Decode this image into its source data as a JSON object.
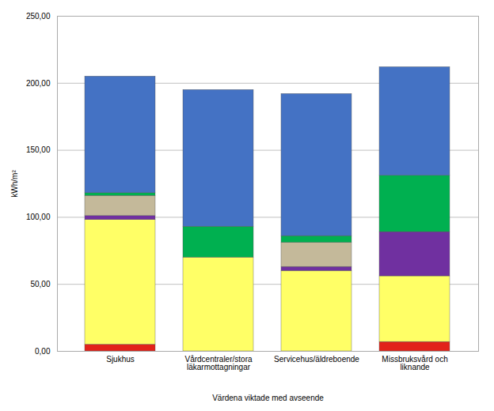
{
  "chart_data": {
    "type": "bar",
    "stacked": true,
    "grid": true,
    "categories": [
      "Sjukhus",
      "Vårdcentraler/stora\nläkarmottagningar",
      "Servicehus/äldreboende",
      "Missbruksvård och\nliknande"
    ],
    "series": [
      {
        "color": "#e2231a",
        "values": [
          5,
          0,
          0,
          7
        ]
      },
      {
        "color": "#ffff66",
        "values": [
          93,
          70,
          60,
          49
        ]
      },
      {
        "color": "#7030a0",
        "values": [
          3,
          0,
          3,
          33
        ]
      },
      {
        "color": "#c4b99a",
        "values": [
          15,
          0,
          18,
          0
        ]
      },
      {
        "color": "#00b050",
        "values": [
          2,
          23,
          5,
          42
        ]
      },
      {
        "color": "#4472c4",
        "values": [
          87,
          102,
          106,
          81
        ]
      }
    ],
    "xlabel": "Värdena viktade med avseende",
    "ylabel": "kWh/m²",
    "ylim": [
      0,
      250
    ],
    "yticks": [
      {
        "value": 0,
        "label": "0,00"
      },
      {
        "value": 50,
        "label": "50,00"
      },
      {
        "value": 100,
        "label": "100,00"
      },
      {
        "value": 150,
        "label": "150,00"
      },
      {
        "value": 200,
        "label": "200,00"
      },
      {
        "value": 250,
        "label": "250,00"
      }
    ]
  }
}
